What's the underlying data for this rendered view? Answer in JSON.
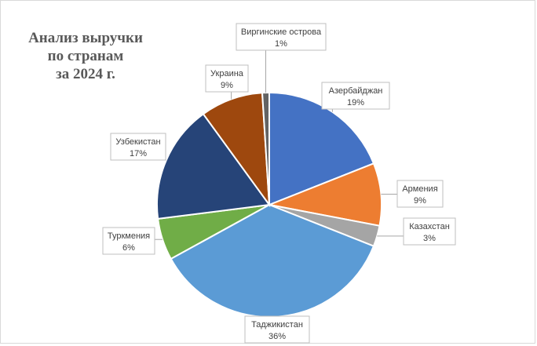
{
  "chart_data": {
    "type": "pie",
    "title": "Анализ выручки\nпо странам\nза 2024 г.",
    "slices": [
      {
        "label": "Азербайджан",
        "value": 19,
        "value_label": "19%",
        "color": "#4472c4"
      },
      {
        "label": "Армения",
        "value": 9,
        "value_label": "9%",
        "color": "#ed7d31"
      },
      {
        "label": "Казахстан",
        "value": 3,
        "value_label": "3%",
        "color": "#a5a5a5"
      },
      {
        "label": "Таджикистан",
        "value": 36,
        "value_label": "36%",
        "color": "#5b9bd5"
      },
      {
        "label": "Туркмения",
        "value": 6,
        "value_label": "6%",
        "color": "#70ad47"
      },
      {
        "label": "Узбекистан",
        "value": 17,
        "value_label": "17%",
        "color": "#264478"
      },
      {
        "label": "Украина",
        "value": 9,
        "value_label": "9%",
        "color": "#9e480e"
      },
      {
        "label": "Виргинские острова",
        "value": 1,
        "value_label": "1%",
        "color": "#636363"
      }
    ]
  }
}
